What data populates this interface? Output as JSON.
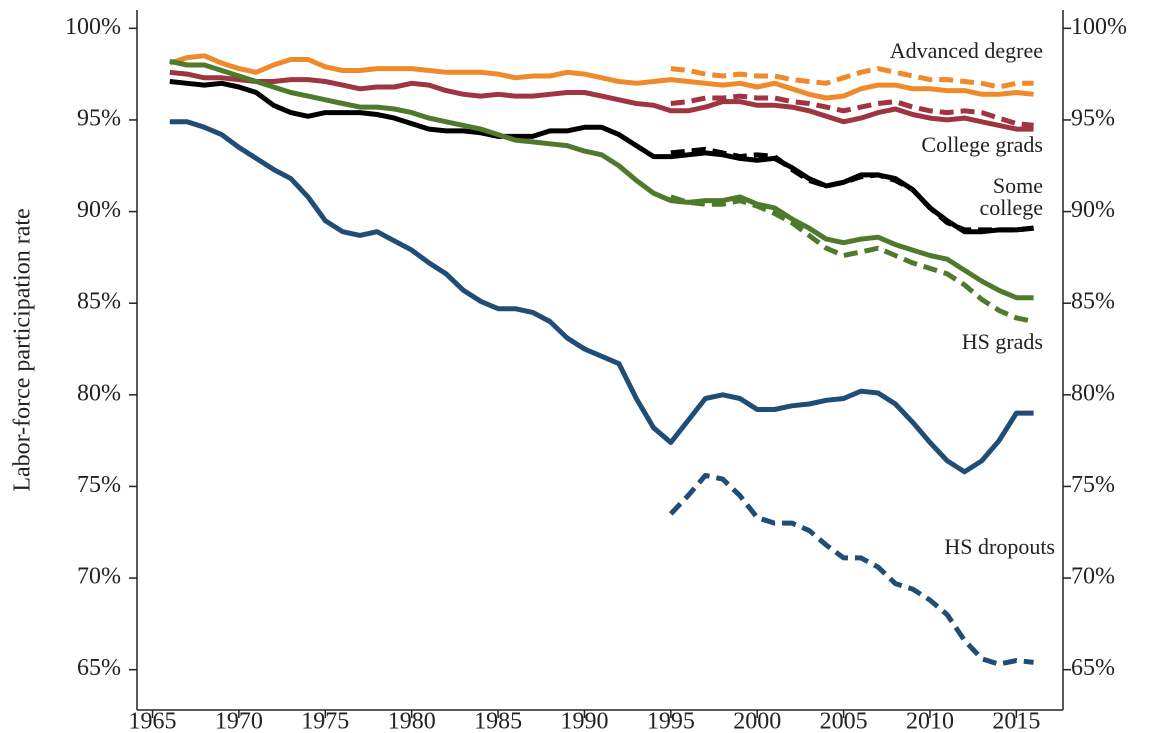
{
  "chart_data": {
    "type": "line",
    "y_label": "Labor-force participation rate",
    "x": [
      1966,
      1967,
      1968,
      1969,
      1970,
      1971,
      1972,
      1973,
      1974,
      1975,
      1976,
      1977,
      1978,
      1979,
      1980,
      1981,
      1982,
      1983,
      1984,
      1985,
      1986,
      1987,
      1988,
      1989,
      1990,
      1991,
      1992,
      1993,
      1994,
      1995,
      1996,
      1997,
      1998,
      1999,
      2000,
      2001,
      2002,
      2003,
      2004,
      2005,
      2006,
      2007,
      2008,
      2009,
      2010,
      2011,
      2012,
      2013,
      2014,
      2015,
      2016
    ],
    "xlim": [
      1964.1,
      2017.7
    ],
    "xticks": [
      1965,
      1970,
      1975,
      1980,
      1985,
      1990,
      1995,
      2000,
      2005,
      2010,
      2015
    ],
    "ylim": [
      62.8,
      101.0
    ],
    "yticks": [
      {
        "value": 65,
        "label": "65%"
      },
      {
        "value": 70,
        "label": "70%"
      },
      {
        "value": 75,
        "label": "75%"
      },
      {
        "value": 80,
        "label": "80%"
      },
      {
        "value": 85,
        "label": "85%"
      },
      {
        "value": 90,
        "label": "90%"
      },
      {
        "value": 95,
        "label": "95%"
      },
      {
        "value": 100,
        "label": "100%"
      }
    ],
    "y2lim": [
      62.8,
      101.0
    ],
    "y2ticks": [
      {
        "value": 65,
        "label": "65%"
      },
      {
        "value": 70,
        "label": "70%"
      },
      {
        "value": 75,
        "label": "75%"
      },
      {
        "value": 80,
        "label": "80%"
      },
      {
        "value": 85,
        "label": "85%"
      },
      {
        "value": 90,
        "label": "90%"
      },
      {
        "value": 95,
        "label": "95%"
      },
      {
        "value": 100,
        "label": "100%"
      }
    ],
    "series": [
      {
        "name": "Advanced degree",
        "color": "#f0892a",
        "dashed": false,
        "values": [
          98.1,
          98.4,
          98.5,
          98.1,
          97.8,
          97.6,
          98.0,
          98.3,
          98.3,
          97.9,
          97.7,
          97.7,
          97.8,
          97.8,
          97.8,
          97.7,
          97.6,
          97.6,
          97.6,
          97.5,
          97.3,
          97.4,
          97.4,
          97.6,
          97.5,
          97.3,
          97.1,
          97.0,
          97.1,
          97.2,
          97.1,
          97.0,
          96.9,
          97.0,
          96.8,
          97.0,
          96.7,
          96.4,
          96.2,
          96.3,
          96.7,
          96.9,
          96.9,
          96.7,
          96.7,
          96.6,
          96.6,
          96.4,
          96.4,
          96.5,
          96.4
        ]
      },
      {
        "color": "#f0892a",
        "dashed": true,
        "values": [
          null,
          null,
          null,
          null,
          null,
          null,
          null,
          null,
          null,
          null,
          null,
          null,
          null,
          null,
          null,
          null,
          null,
          null,
          null,
          null,
          null,
          null,
          null,
          null,
          null,
          null,
          null,
          null,
          null,
          97.8,
          97.7,
          97.5,
          97.4,
          97.5,
          97.4,
          97.4,
          97.2,
          97.1,
          97.0,
          97.3,
          97.6,
          97.8,
          97.6,
          97.4,
          97.2,
          97.2,
          97.1,
          97.0,
          96.8,
          97.0,
          97.0
        ]
      },
      {
        "name": "College grads",
        "color": "#9e3540",
        "dashed": false,
        "values": [
          97.6,
          97.5,
          97.3,
          97.3,
          97.2,
          97.1,
          97.1,
          97.2,
          97.2,
          97.1,
          96.9,
          96.7,
          96.8,
          96.8,
          97.0,
          96.9,
          96.6,
          96.4,
          96.3,
          96.4,
          96.3,
          96.3,
          96.4,
          96.5,
          96.5,
          96.3,
          96.1,
          95.9,
          95.8,
          95.5,
          95.5,
          95.7,
          96.0,
          96.0,
          95.8,
          95.8,
          95.7,
          95.5,
          95.2,
          94.9,
          95.1,
          95.4,
          95.6,
          95.3,
          95.1,
          95.0,
          95.1,
          94.9,
          94.7,
          94.5,
          94.5
        ]
      },
      {
        "color": "#9e3540",
        "dashed": true,
        "values": [
          null,
          null,
          null,
          null,
          null,
          null,
          null,
          null,
          null,
          null,
          null,
          null,
          null,
          null,
          null,
          null,
          null,
          null,
          null,
          null,
          null,
          null,
          null,
          null,
          null,
          null,
          null,
          null,
          null,
          95.9,
          96.0,
          96.2,
          96.2,
          96.3,
          96.2,
          96.2,
          96.0,
          95.9,
          95.7,
          95.5,
          95.7,
          95.9,
          96.0,
          95.7,
          95.5,
          95.4,
          95.5,
          95.4,
          95.1,
          94.8,
          94.7
        ]
      },
      {
        "name": "Some college",
        "color": "#000000",
        "dashed": false,
        "values": [
          97.1,
          97.0,
          96.9,
          97.0,
          96.8,
          96.5,
          95.8,
          95.4,
          95.2,
          95.4,
          95.4,
          95.4,
          95.3,
          95.1,
          94.8,
          94.5,
          94.4,
          94.4,
          94.3,
          94.1,
          94.1,
          94.1,
          94.4,
          94.4,
          94.6,
          94.6,
          94.2,
          93.6,
          93.0,
          93.0,
          93.1,
          93.2,
          93.1,
          92.9,
          92.8,
          92.9,
          92.4,
          91.8,
          91.4,
          91.6,
          92.0,
          92.0,
          91.8,
          91.2,
          90.2,
          89.5,
          88.9,
          88.9,
          89.0,
          89.0,
          89.1
        ]
      },
      {
        "color": "#000000",
        "dashed": true,
        "values": [
          null,
          null,
          null,
          null,
          null,
          null,
          null,
          null,
          null,
          null,
          null,
          null,
          null,
          null,
          null,
          null,
          null,
          null,
          null,
          null,
          null,
          null,
          null,
          null,
          null,
          null,
          null,
          null,
          null,
          93.2,
          93.3,
          93.4,
          93.2,
          93.0,
          93.1,
          93.0,
          92.3,
          91.7,
          91.4,
          91.6,
          91.9,
          92.0,
          91.7,
          91.2,
          90.2,
          89.4,
          89.0,
          89.0,
          89.0,
          89.0,
          89.1
        ]
      },
      {
        "name": "HS grads",
        "color": "#4e7a2c",
        "dashed": false,
        "values": [
          98.2,
          98.0,
          98.0,
          97.7,
          97.4,
          97.1,
          96.8,
          96.5,
          96.3,
          96.1,
          95.9,
          95.7,
          95.7,
          95.6,
          95.4,
          95.1,
          94.9,
          94.7,
          94.5,
          94.2,
          93.9,
          93.8,
          93.7,
          93.6,
          93.3,
          93.1,
          92.5,
          91.7,
          91.0,
          90.6,
          90.5,
          90.6,
          90.6,
          90.8,
          90.4,
          90.2,
          89.6,
          89.1,
          88.5,
          88.3,
          88.5,
          88.6,
          88.2,
          87.9,
          87.6,
          87.4,
          86.8,
          86.2,
          85.7,
          85.3,
          85.3
        ]
      },
      {
        "color": "#4e7a2c",
        "dashed": true,
        "values": [
          null,
          null,
          null,
          null,
          null,
          null,
          null,
          null,
          null,
          null,
          null,
          null,
          null,
          null,
          null,
          null,
          null,
          null,
          null,
          null,
          null,
          null,
          null,
          null,
          null,
          null,
          null,
          null,
          null,
          90.8,
          90.5,
          90.4,
          90.4,
          90.6,
          90.3,
          89.9,
          89.4,
          88.7,
          88.0,
          87.6,
          87.8,
          88.0,
          87.6,
          87.2,
          86.9,
          86.6,
          86.0,
          85.2,
          84.6,
          84.2,
          84.0
        ]
      },
      {
        "name": "HS dropouts",
        "color": "#1f4d76",
        "dashed": false,
        "values": [
          94.9,
          94.9,
          94.6,
          94.2,
          93.5,
          92.9,
          92.3,
          91.8,
          90.8,
          89.5,
          88.9,
          88.7,
          88.9,
          88.4,
          87.9,
          87.2,
          86.6,
          85.7,
          85.1,
          84.7,
          84.7,
          84.5,
          84.0,
          83.1,
          82.5,
          82.1,
          81.7,
          79.8,
          78.2,
          77.4,
          78.6,
          79.8,
          80.0,
          79.8,
          79.2,
          79.2,
          79.4,
          79.5,
          79.7,
          79.8,
          80.2,
          80.1,
          79.5,
          78.5,
          77.4,
          76.4,
          75.8,
          76.4,
          77.5,
          79.0,
          79.0
        ]
      },
      {
        "color": "#1f4d76",
        "dashed": true,
        "values": [
          null,
          null,
          null,
          null,
          null,
          null,
          null,
          null,
          null,
          null,
          null,
          null,
          null,
          null,
          null,
          null,
          null,
          null,
          null,
          null,
          null,
          null,
          null,
          null,
          null,
          null,
          null,
          null,
          null,
          73.5,
          74.5,
          75.6,
          75.4,
          74.5,
          73.3,
          73.0,
          73.0,
          72.6,
          71.8,
          71.1,
          71.1,
          70.6,
          69.7,
          69.4,
          68.8,
          68.0,
          66.6,
          65.6,
          65.3,
          65.5,
          65.4
        ]
      }
    ]
  }
}
